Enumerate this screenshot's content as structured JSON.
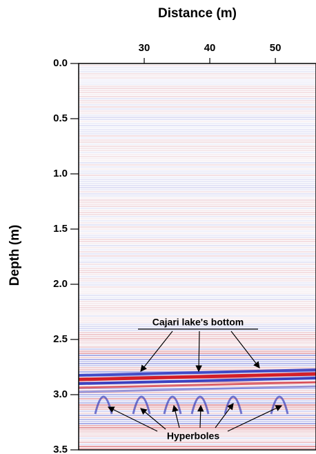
{
  "chart_data": {
    "type": "radargram",
    "x_label": "Distance (m)",
    "y_label": "Depth (m)",
    "xlim": [
      20,
      56.2
    ],
    "xticks": [
      30,
      40,
      50
    ],
    "ylim": [
      0,
      3.5
    ],
    "yticks": [
      {
        "value": 0,
        "label": "0.0"
      },
      0.5,
      {
        "value": 1,
        "label": "1.0"
      },
      1.5,
      {
        "value": 2,
        "label": "2.0"
      },
      2.5,
      {
        "value": 3,
        "label": "3.0"
      },
      3.5
    ],
    "y_inverted": true,
    "x_axis_position": "top",
    "annotations": [
      "Cajari lake's bottom",
      "Hyperboles"
    ]
  }
}
